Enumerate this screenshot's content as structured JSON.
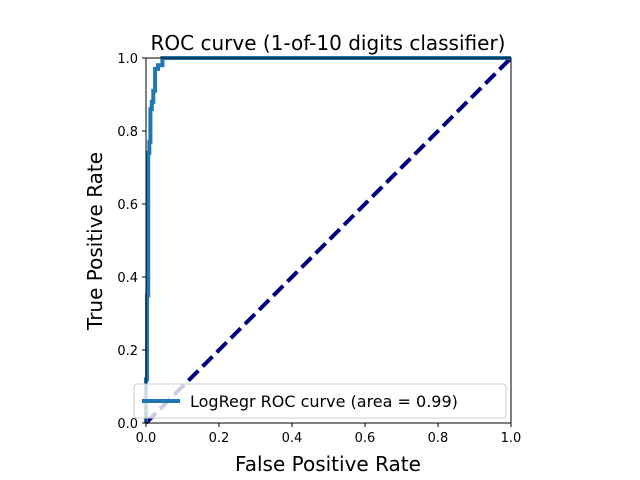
{
  "chart_data": {
    "type": "line",
    "title": "ROC curve (1-of-10 digits classifier)",
    "xlabel": "False Positive Rate",
    "ylabel": "True Positive Rate",
    "xlim": [
      0.0,
      1.0
    ],
    "ylim": [
      0.0,
      1.0
    ],
    "xticks": [
      "0.0",
      "0.2",
      "0.4",
      "0.6",
      "0.8",
      "1.0"
    ],
    "yticks": [
      "0.0",
      "0.2",
      "0.4",
      "0.6",
      "0.8",
      "1.0"
    ],
    "grid": false,
    "legend_position": "lower-right",
    "series": [
      {
        "name": "LogRegr ROC curve (area = 0.99)",
        "color": "#1f77b4",
        "style": "solid",
        "x": [
          0.0,
          0.0,
          0.003,
          0.003,
          0.006,
          0.006,
          0.009,
          0.009,
          0.012,
          0.012,
          0.016,
          0.016,
          0.02,
          0.02,
          0.025,
          0.025,
          0.033,
          0.033,
          0.045,
          0.045,
          1.0
        ],
        "y": [
          0.0,
          0.12,
          0.12,
          0.35,
          0.35,
          0.74,
          0.74,
          0.77,
          0.77,
          0.86,
          0.86,
          0.88,
          0.88,
          0.91,
          0.91,
          0.97,
          0.97,
          0.98,
          0.98,
          1.0,
          1.0
        ]
      },
      {
        "color": "#000080",
        "style": "dashed",
        "x": [
          0.0,
          1.0
        ],
        "y": [
          0.0,
          1.0
        ]
      }
    ]
  }
}
